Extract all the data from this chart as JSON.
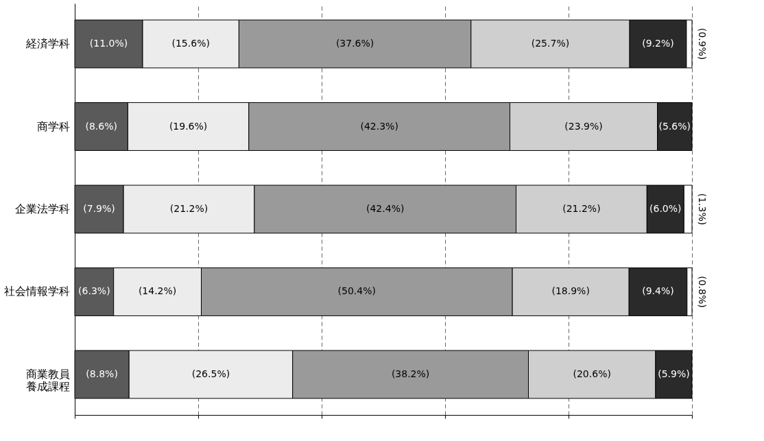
{
  "chart_data": {
    "type": "bar",
    "orientation": "horizontal",
    "stacked": true,
    "categories": [
      "経済学科",
      "商学科",
      "企業法学科",
      "社会情報学科",
      "商業教員養成課程"
    ],
    "series": [
      {
        "color": "#5a5a5a",
        "values": [
          11.0,
          8.6,
          7.9,
          6.3,
          8.8
        ],
        "value_labels": [
          "(11.0%)",
          "(8.6%)",
          "(7.9%)",
          "(6.3%)",
          "(8.8%)"
        ]
      },
      {
        "color": "#ececec",
        "values": [
          15.6,
          19.6,
          21.2,
          14.2,
          26.5
        ],
        "value_labels": [
          "(15.6%)",
          "(19.6%)",
          "(21.2%)",
          "(14.2%)",
          "(26.5%)"
        ]
      },
      {
        "color": "#9a9a9a",
        "values": [
          37.6,
          42.3,
          42.4,
          50.4,
          38.2
        ],
        "value_labels": [
          "(37.6%)",
          "(42.3%)",
          "(42.4%)",
          "(50.4%)",
          "(38.2%)"
        ]
      },
      {
        "color": "#cfcfcf",
        "values": [
          25.7,
          23.9,
          21.2,
          18.9,
          20.6
        ],
        "value_labels": [
          "(25.7%)",
          "(23.9%)",
          "(21.2%)",
          "(18.9%)",
          "(20.6%)"
        ]
      },
      {
        "color": "#2a2a2a",
        "values": [
          9.2,
          5.6,
          6.0,
          9.4,
          5.9
        ],
        "value_labels": [
          "(9.2%)",
          "(5.6%)",
          "(6.0%)",
          "(9.4%)",
          "(5.9%)"
        ]
      },
      {
        "color": "#ffffff",
        "values": [
          0.9,
          null,
          1.3,
          0.8,
          null
        ],
        "value_labels": [
          "(0.9%)",
          null,
          "(1.3%)",
          "(0.8%)",
          null
        ]
      }
    ],
    "xlim": [
      0,
      100
    ],
    "xticks": [
      {
        "value": 0,
        "label": null
      },
      {
        "value": 20,
        "label": null
      },
      {
        "value": 40,
        "label": null
      },
      {
        "value": 60,
        "label": null
      },
      {
        "value": 80,
        "label": null
      },
      {
        "value": 100,
        "label": null
      }
    ],
    "grid": "x",
    "tick_labels": "y"
  }
}
